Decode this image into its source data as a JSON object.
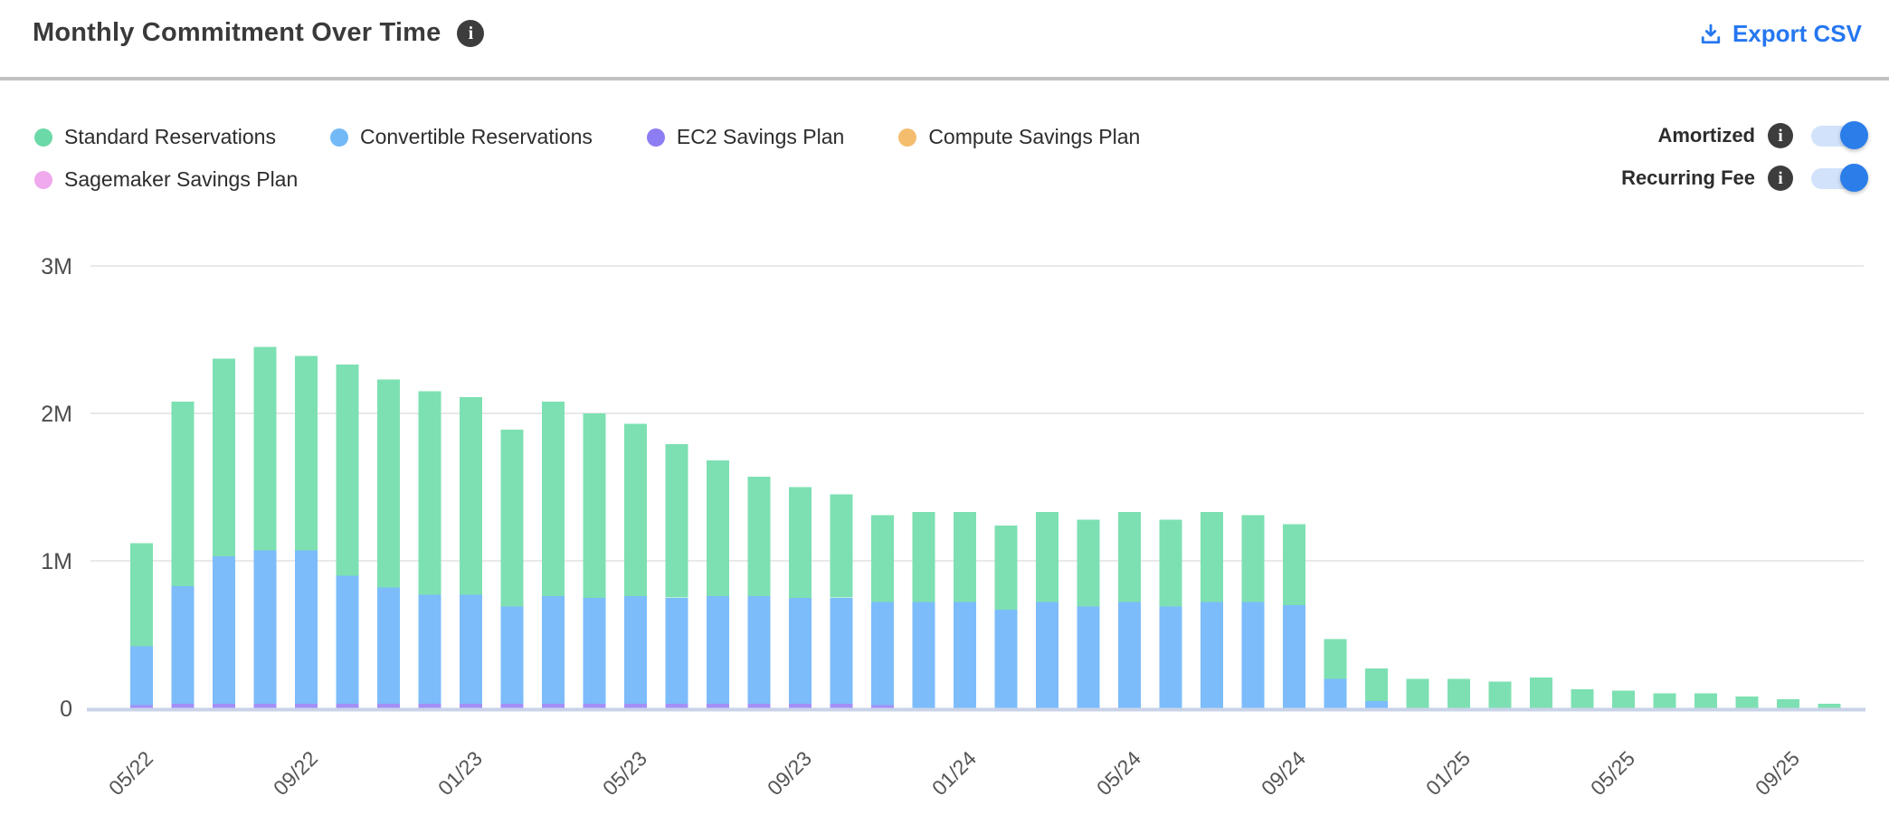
{
  "header": {
    "title": "Monthly Commitment Over Time",
    "export_label": "Export CSV"
  },
  "legend": {
    "items": [
      {
        "label": "Standard Reservations",
        "color": "#6cd9a8"
      },
      {
        "label": "Convertible Reservations",
        "color": "#74b9f7"
      },
      {
        "label": "EC2 Savings Plan",
        "color": "#8d7df2"
      },
      {
        "label": "Compute Savings Plan",
        "color": "#f4bd6e"
      },
      {
        "label": "Sagemaker Savings Plan",
        "color": "#efa9ec"
      }
    ]
  },
  "toggles": [
    {
      "label": "Amortized",
      "state": "on"
    },
    {
      "label": "Recurring Fee",
      "state": "on"
    }
  ],
  "colors": {
    "accent_blue": "#2577f0",
    "toggle_knob": "#2b7de9",
    "toggle_track": "#d2e2fb",
    "info_badge_bg": "#3d3d3d",
    "gridline": "#e9e9e9",
    "baseline": "#c9d3e8",
    "axis_text": "#555555"
  },
  "chart_data": {
    "type": "bar",
    "stacked": true,
    "title": "Monthly Commitment Over Time",
    "xlabel": "",
    "ylabel": "",
    "unit": "M",
    "ylim": [
      0,
      3.3
    ],
    "grid": true,
    "legend_position": "top-left",
    "y_ticks": [
      "0",
      "1M",
      "2M",
      "3M"
    ],
    "x": [
      "05/22",
      "06/22",
      "07/22",
      "08/22",
      "09/22",
      "10/22",
      "11/22",
      "12/22",
      "01/23",
      "02/23",
      "03/23",
      "04/23",
      "05/23",
      "06/23",
      "07/23",
      "08/23",
      "09/23",
      "10/23",
      "11/23",
      "12/23",
      "01/24",
      "02/24",
      "03/24",
      "04/24",
      "05/24",
      "06/24",
      "07/24",
      "08/24",
      "09/24",
      "10/24",
      "11/24",
      "12/24",
      "01/25",
      "02/25",
      "03/25",
      "04/25",
      "05/25",
      "06/25",
      "07/25",
      "08/25",
      "09/25",
      "10/25"
    ],
    "x_ticks": [
      {
        "i": 0,
        "label": "05/22"
      },
      {
        "i": 4,
        "label": "09/22"
      },
      {
        "i": 8,
        "label": "01/23"
      },
      {
        "i": 12,
        "label": "05/23"
      },
      {
        "i": 16,
        "label": "09/23"
      },
      {
        "i": 20,
        "label": "01/24"
      },
      {
        "i": 24,
        "label": "05/24"
      },
      {
        "i": 28,
        "label": "09/24"
      },
      {
        "i": 32,
        "label": "01/25"
      },
      {
        "i": 36,
        "label": "05/25"
      },
      {
        "i": 40,
        "label": "09/25"
      }
    ],
    "series": [
      {
        "name": "EC2 Savings Plan",
        "key": "ec2-savings-plan",
        "color": "#a48ff7",
        "values": [
          0.02,
          0.03,
          0.03,
          0.03,
          0.03,
          0.03,
          0.03,
          0.03,
          0.03,
          0.03,
          0.03,
          0.03,
          0.03,
          0.03,
          0.03,
          0.03,
          0.03,
          0.03,
          0.02,
          0,
          0,
          0,
          0,
          0,
          0,
          0,
          0,
          0,
          0,
          0,
          0,
          0,
          0,
          0,
          0,
          0,
          0,
          0,
          0,
          0,
          0,
          0
        ]
      },
      {
        "name": "Convertible Reservations",
        "key": "convertible-reservations",
        "color": "#7cbcfa",
        "values": [
          0.4,
          0.8,
          1.0,
          1.04,
          1.04,
          0.87,
          0.79,
          0.74,
          0.74,
          0.66,
          0.73,
          0.72,
          0.73,
          0.72,
          0.73,
          0.73,
          0.72,
          0.72,
          0.7,
          0.72,
          0.72,
          0.67,
          0.72,
          0.69,
          0.72,
          0.69,
          0.72,
          0.72,
          0.7,
          0.2,
          0.05,
          0,
          0,
          0,
          0,
          0,
          0,
          0,
          0,
          0,
          0,
          0
        ]
      },
      {
        "name": "Standard Reservations",
        "key": "standard-reservations",
        "color": "#7de0b2",
        "values": [
          0.7,
          1.25,
          1.34,
          1.38,
          1.32,
          1.43,
          1.41,
          1.38,
          1.34,
          1.2,
          1.32,
          1.25,
          1.17,
          1.04,
          0.92,
          0.81,
          0.75,
          0.7,
          0.59,
          0.61,
          0.61,
          0.57,
          0.61,
          0.59,
          0.61,
          0.59,
          0.61,
          0.59,
          0.55,
          0.27,
          0.22,
          0.2,
          0.2,
          0.18,
          0.21,
          0.13,
          0.12,
          0.1,
          0.1,
          0.08,
          0.06,
          0.03
        ]
      },
      {
        "name": "Compute Savings Plan",
        "key": "compute-savings-plan",
        "color": "#f4bd6e",
        "values": [
          0,
          0,
          0,
          0,
          0,
          0,
          0,
          0,
          0,
          0,
          0,
          0,
          0,
          0,
          0,
          0,
          0,
          0,
          0,
          0,
          0,
          0,
          0,
          0,
          0,
          0,
          0,
          0,
          0,
          0,
          0,
          0,
          0,
          0,
          0,
          0,
          0,
          0,
          0,
          0,
          0,
          0
        ]
      },
      {
        "name": "Sagemaker Savings Plan",
        "key": "sagemaker-savings-plan",
        "color": "#efa9ec",
        "values": [
          0,
          0,
          0,
          0,
          0,
          0,
          0,
          0,
          0,
          0,
          0,
          0,
          0,
          0,
          0,
          0,
          0,
          0,
          0,
          0,
          0,
          0,
          0,
          0,
          0,
          0,
          0,
          0,
          0,
          0,
          0,
          0,
          0,
          0,
          0,
          0,
          0,
          0,
          0,
          0,
          0,
          0
        ]
      }
    ]
  }
}
